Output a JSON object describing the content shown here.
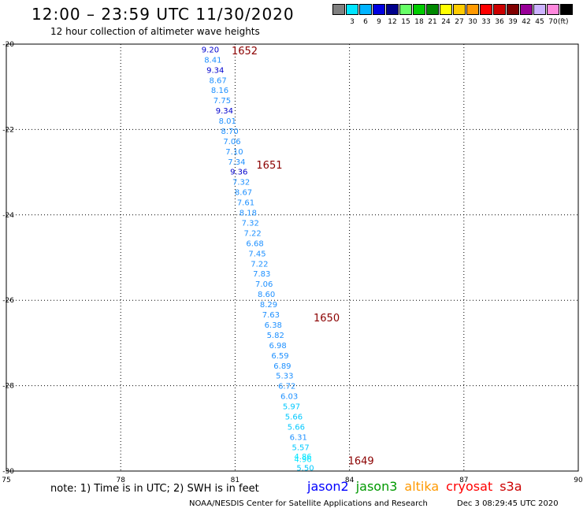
{
  "header": {
    "title": "12:00 – 23:59 UTC 11/30/2020",
    "subtitle": "12 hour collection of altimeter wave heights"
  },
  "color_scale": {
    "unit": "(ft)",
    "swatches": [
      {
        "label": "",
        "color": "#808080"
      },
      {
        "label": "3",
        "color": "#00e5ff"
      },
      {
        "label": "6",
        "color": "#00b4ff"
      },
      {
        "label": "9",
        "color": "#0000e0"
      },
      {
        "label": "12",
        "color": "#00008b"
      },
      {
        "label": "15",
        "color": "#66ff66"
      },
      {
        "label": "18",
        "color": "#00cc00"
      },
      {
        "label": "21",
        "color": "#008800"
      },
      {
        "label": "24",
        "color": "#ffff00"
      },
      {
        "label": "27",
        "color": "#ffcc00"
      },
      {
        "label": "30",
        "color": "#ff9900"
      },
      {
        "label": "33",
        "color": "#ff0000"
      },
      {
        "label": "36",
        "color": "#cc0000"
      },
      {
        "label": "39",
        "color": "#800000"
      },
      {
        "label": "42",
        "color": "#990099"
      },
      {
        "label": "45",
        "color": "#ccb3ff"
      },
      {
        "label": "70",
        "color": "#ff88dd"
      },
      {
        "label": "",
        "color": "#000000"
      }
    ]
  },
  "chart_data": {
    "type": "scatter",
    "xlim": [
      75,
      90
    ],
    "ylim": [
      -30,
      -20
    ],
    "x_ticks": [
      "75",
      "78",
      "81",
      "84",
      "87",
      "90"
    ],
    "y_ticks": [
      "-20",
      "-22",
      "-24",
      "-26",
      "-28",
      "-30"
    ],
    "grid": true,
    "points": [
      {
        "lon": 80.35,
        "lat": -20.12,
        "label": "9.20",
        "color": "#0000cd"
      },
      {
        "lon": 80.42,
        "lat": -20.36,
        "label": "8.41",
        "color": "#1e90ff"
      },
      {
        "lon": 80.48,
        "lat": -20.6,
        "label": "9.34",
        "color": "#0000cd"
      },
      {
        "lon": 80.55,
        "lat": -20.84,
        "label": "8.67",
        "color": "#1e90ff"
      },
      {
        "lon": 80.6,
        "lat": -21.07,
        "label": "8.16",
        "color": "#1e90ff"
      },
      {
        "lon": 80.66,
        "lat": -21.31,
        "label": "7.75",
        "color": "#1e90ff"
      },
      {
        "lon": 80.72,
        "lat": -21.55,
        "label": "9.34",
        "color": "#0000cd"
      },
      {
        "lon": 80.8,
        "lat": -21.79,
        "label": "8.01",
        "color": "#1e90ff"
      },
      {
        "lon": 80.86,
        "lat": -22.03,
        "label": "8.70",
        "color": "#1e90ff"
      },
      {
        "lon": 80.92,
        "lat": -22.27,
        "label": "7.06",
        "color": "#1e90ff"
      },
      {
        "lon": 80.98,
        "lat": -22.51,
        "label": "7.10",
        "color": "#1e90ff"
      },
      {
        "lon": 81.04,
        "lat": -22.75,
        "label": "7.34",
        "color": "#1e90ff"
      },
      {
        "lon": 81.1,
        "lat": -22.98,
        "label": "9.36",
        "color": "#0000cd"
      },
      {
        "lon": 81.16,
        "lat": -23.22,
        "label": "7.32",
        "color": "#1e90ff"
      },
      {
        "lon": 81.22,
        "lat": -23.46,
        "label": "8.67",
        "color": "#1e90ff"
      },
      {
        "lon": 81.28,
        "lat": -23.7,
        "label": "7.61",
        "color": "#1e90ff"
      },
      {
        "lon": 81.34,
        "lat": -23.94,
        "label": "8.18",
        "color": "#1e90ff"
      },
      {
        "lon": 81.4,
        "lat": -24.18,
        "label": "7.32",
        "color": "#1e90ff"
      },
      {
        "lon": 81.46,
        "lat": -24.42,
        "label": "7.22",
        "color": "#1e90ff"
      },
      {
        "lon": 81.52,
        "lat": -24.66,
        "label": "6.68",
        "color": "#1e90ff"
      },
      {
        "lon": 81.58,
        "lat": -24.9,
        "label": "7.45",
        "color": "#1e90ff"
      },
      {
        "lon": 81.64,
        "lat": -25.14,
        "label": "7.22",
        "color": "#1e90ff"
      },
      {
        "lon": 81.7,
        "lat": -25.37,
        "label": "7.83",
        "color": "#1e90ff"
      },
      {
        "lon": 81.76,
        "lat": -25.61,
        "label": "7.06",
        "color": "#1e90ff"
      },
      {
        "lon": 81.82,
        "lat": -25.85,
        "label": "8.60",
        "color": "#1e90ff"
      },
      {
        "lon": 81.88,
        "lat": -26.09,
        "label": "8.29",
        "color": "#1e90ff"
      },
      {
        "lon": 81.94,
        "lat": -26.33,
        "label": "7.63",
        "color": "#1e90ff"
      },
      {
        "lon": 82.0,
        "lat": -26.57,
        "label": "6.38",
        "color": "#1e90ff"
      },
      {
        "lon": 82.06,
        "lat": -26.81,
        "label": "5.82",
        "color": "#1e90ff"
      },
      {
        "lon": 82.12,
        "lat": -27.05,
        "label": "6.98",
        "color": "#1e90ff"
      },
      {
        "lon": 82.18,
        "lat": -27.29,
        "label": "6.59",
        "color": "#1e90ff"
      },
      {
        "lon": 82.24,
        "lat": -27.53,
        "label": "6.89",
        "color": "#1e90ff"
      },
      {
        "lon": 82.3,
        "lat": -27.76,
        "label": "5.33",
        "color": "#1e90ff"
      },
      {
        "lon": 82.36,
        "lat": -28.0,
        "label": "6.72",
        "color": "#1e90ff"
      },
      {
        "lon": 82.42,
        "lat": -28.24,
        "label": "6.03",
        "color": "#1e90ff"
      },
      {
        "lon": 82.48,
        "lat": -28.48,
        "label": "5.97",
        "color": "#00c8ff"
      },
      {
        "lon": 82.54,
        "lat": -28.72,
        "label": "5.66",
        "color": "#00c8ff"
      },
      {
        "lon": 82.6,
        "lat": -28.96,
        "label": "5.66",
        "color": "#00c8ff"
      },
      {
        "lon": 82.66,
        "lat": -29.2,
        "label": "6.31",
        "color": "#1e90ff"
      },
      {
        "lon": 82.72,
        "lat": -29.44,
        "label": "5.57",
        "color": "#00c8ff"
      },
      {
        "lon": 82.78,
        "lat": -29.65,
        "label": "4.86",
        "color": "#00e5ff"
      },
      {
        "lon": 82.78,
        "lat": -29.71,
        "label": "4.96",
        "color": "#00e5ff"
      },
      {
        "lon": 82.84,
        "lat": -29.92,
        "label": "5.50",
        "color": "#00c8ff"
      }
    ],
    "pass_labels": [
      {
        "lon": 81.25,
        "lat": -20.15,
        "label": "1652"
      },
      {
        "lon": 81.9,
        "lat": -22.82,
        "label": "1651"
      },
      {
        "lon": 83.4,
        "lat": -26.4,
        "label": "1650"
      },
      {
        "lon": 84.3,
        "lat": -29.75,
        "label": "1649"
      }
    ]
  },
  "footer": {
    "note": "note:  1) Time is in UTC;  2) SWH is in feet",
    "missions": [
      {
        "name": "jason2",
        "color": "#0000ff"
      },
      {
        "name": "jason3",
        "color": "#009900"
      },
      {
        "name": "altika",
        "color": "#ff9900"
      },
      {
        "name": "cryosat",
        "color": "#ff0000"
      },
      {
        "name": "s3a",
        "color": "#cc0000"
      }
    ],
    "credit": "NOAA/NESDIS Center for Satellite Applications and Research",
    "timestamp": "Dec  3 08:29:45 UTC 2020"
  }
}
